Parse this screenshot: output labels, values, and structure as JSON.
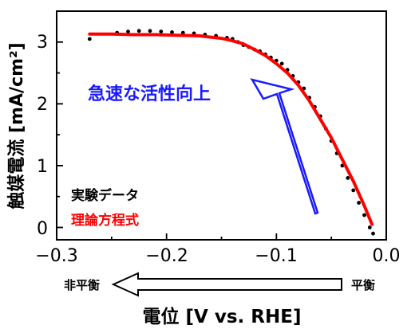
{
  "chart_data": {
    "type": "scatter",
    "xlabel": "電位 [V vs. RHE]",
    "ylabel": "触媒電流 [mA/cm²]",
    "xlim": [
      -0.3,
      0.0
    ],
    "ylim": [
      -0.2,
      3.5
    ],
    "x_ticks": [
      "−0.3",
      "−0.2",
      "−0.1",
      "0.0"
    ],
    "y_ticks": [
      "0",
      "1",
      "2",
      "3"
    ],
    "grid": false,
    "legend_position": "bottom-left",
    "series": [
      {
        "name": "実験データ",
        "kind": "scatter",
        "color": "#000000",
        "x": [
          -0.27,
          -0.245,
          -0.235,
          -0.225,
          -0.215,
          -0.205,
          -0.195,
          -0.185,
          -0.175,
          -0.165,
          -0.155,
          -0.145,
          -0.14,
          -0.135,
          -0.13,
          -0.125,
          -0.12,
          -0.115,
          -0.11,
          -0.105,
          -0.1,
          -0.095,
          -0.09,
          -0.085,
          -0.08,
          -0.075,
          -0.07,
          -0.065,
          -0.06,
          -0.055,
          -0.05,
          -0.045,
          -0.04,
          -0.035,
          -0.03,
          -0.025,
          -0.02,
          -0.015,
          -0.012
        ],
        "y": [
          3.05,
          3.15,
          3.17,
          3.18,
          3.18,
          3.17,
          3.16,
          3.15,
          3.14,
          3.12,
          3.1,
          3.07,
          3.05,
          3.0,
          2.95,
          2.92,
          2.88,
          2.85,
          2.8,
          2.75,
          2.7,
          2.65,
          2.55,
          2.45,
          2.35,
          2.25,
          2.1,
          1.95,
          1.8,
          1.6,
          1.4,
          1.2,
          1.0,
          0.8,
          0.6,
          0.4,
          0.2,
          0.0,
          -0.1
        ]
      },
      {
        "name": "理論方程式",
        "kind": "line",
        "color": "#ff0000",
        "x": [
          -0.27,
          -0.25,
          -0.23,
          -0.21,
          -0.19,
          -0.17,
          -0.15,
          -0.14,
          -0.13,
          -0.12,
          -0.11,
          -0.1,
          -0.09,
          -0.08,
          -0.07,
          -0.06,
          -0.05,
          -0.04,
          -0.03,
          -0.02,
          -0.013
        ],
        "y": [
          3.13,
          3.13,
          3.12,
          3.12,
          3.11,
          3.1,
          3.06,
          3.02,
          2.97,
          2.88,
          2.78,
          2.65,
          2.5,
          2.3,
          2.05,
          1.75,
          1.45,
          1.1,
          0.75,
          0.35,
          0.05
        ]
      }
    ],
    "annotations": {
      "rapid_activity": "急速な活性向上",
      "experimental_data": "実験データ",
      "theoretical_equation": "理論方程式",
      "non_equilibrium": "非平衡",
      "equilibrium": "平衡"
    },
    "colors": {
      "annotation_blue": "#1a1aff",
      "data_black": "#000000",
      "fit_red": "#ff0000"
    }
  }
}
